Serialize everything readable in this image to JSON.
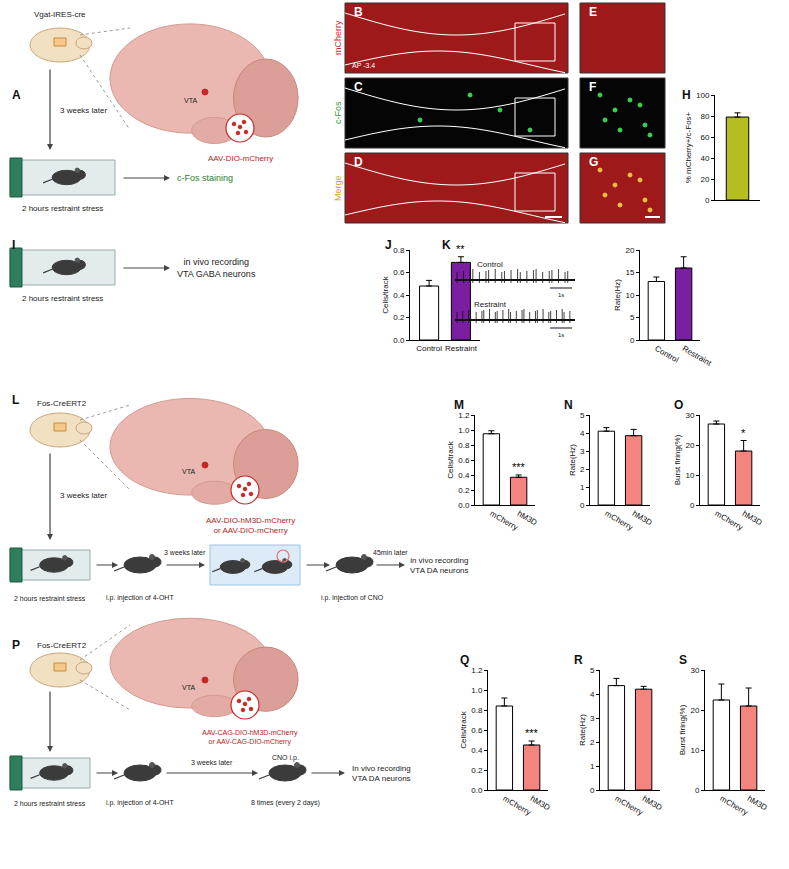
{
  "panel_labels": [
    "A",
    "B",
    "C",
    "D",
    "E",
    "F",
    "G",
    "H",
    "I",
    "J",
    "K",
    "L",
    "M",
    "N",
    "O",
    "P",
    "Q",
    "R",
    "S"
  ],
  "schematics": {
    "A": {
      "strain": "Vgat-IRES-cre",
      "region": "VTA",
      "virus": [
        "AAV-DIO-mCherry"
      ],
      "interval": "3 weeks later",
      "stress": "2 hours restraint stress",
      "readout": [
        "c-Fos staining"
      ]
    },
    "I": {
      "stress": "2 hours restraint stress",
      "readout": [
        "in vivo recording",
        "VTA GABA neurons"
      ]
    },
    "L": {
      "strain": "Fos-CreERT2",
      "region": "VTA",
      "virus": [
        "AAV-DIO-hM3D-mCherry",
        "or AAV-DIO-mCherry"
      ],
      "interval": "3 weeks later",
      "stress": "2 hours restraint stress",
      "step1": [
        "i.p. injection of 4-OHT"
      ],
      "interval2": "3 weeks later",
      "step2": [
        "i.p. injection of CNO"
      ],
      "interval3": "45min later",
      "readout": [
        "in vivo recording",
        "VTA DA neurons"
      ]
    },
    "P": {
      "strain": "Fos-CreERT2",
      "region": "VTA",
      "virus": [
        "AAV-CAG-DIO-hM3D-mCherry",
        "or AAV-CAG-DIO-mCherry"
      ],
      "stress": "2 hours restraint stress",
      "step1": [
        "i.p. injection of 4-OHT"
      ],
      "interval2": "3 weeks later",
      "step2_top": "CNO i.p.",
      "step2": [
        "8 times (every 2 days)"
      ],
      "readout": [
        "In vivo recording",
        "VTA DA neurons"
      ]
    }
  },
  "images": {
    "channels": [
      "mCherry",
      "c-Fos",
      "Merge"
    ],
    "section": "AP -3.4"
  },
  "traces": {
    "labels": [
      "Control",
      "Restraint"
    ],
    "time_scale": "1s"
  },
  "chart_data": [
    {
      "type": "bar",
      "categories": [
        null
      ],
      "values": [
        79
      ],
      "errors": [
        4
      ],
      "colors": [
        "#b5be1e"
      ],
      "y_label": "% mCherry+/c-Fos+",
      "ylim": [
        0,
        100
      ],
      "yticks": [
        0,
        20,
        40,
        60,
        80,
        100
      ]
    },
    {
      "type": "bar",
      "categories": [
        "Control",
        "Restraint"
      ],
      "values": [
        0.48,
        0.69
      ],
      "errors": [
        0.05,
        0.05
      ],
      "colors": [
        "#ffffff",
        "#7b1fa2"
      ],
      "y_label": "Cells/track",
      "ylim": [
        0,
        0.8
      ],
      "yticks": [
        {
          "value": 0,
          "label": "0.0"
        },
        0.2,
        0.4,
        0.6,
        0.8
      ],
      "annotations": [
        {
          "text": "**",
          "category": "Restraint"
        }
      ]
    },
    {
      "type": "bar",
      "categories": [
        "Control",
        "Restraint"
      ],
      "values": [
        13,
        16
      ],
      "errors": [
        1,
        2.5
      ],
      "colors": [
        "#ffffff",
        "#7b1fa2"
      ],
      "y_label": "Rate(Hz)",
      "ylim": [
        0,
        20
      ],
      "yticks": [
        0,
        5,
        10,
        15,
        20
      ]
    },
    {
      "type": "bar",
      "categories": [
        "mCherry",
        "hM3D"
      ],
      "values": [
        0.95,
        0.37
      ],
      "errors": [
        0.04,
        0.03
      ],
      "colors": [
        "#ffffff",
        "#f4847e"
      ],
      "y_label": "Cells/track",
      "ylim": [
        0,
        1.2
      ],
      "yticks": [
        {
          "value": 0,
          "label": "0.0"
        },
        0.2,
        0.4,
        0.6,
        0.8,
        {
          "value": 1,
          "label": "1.0"
        },
        1.2
      ],
      "annotations": [
        {
          "text": "***",
          "category": "hM3D"
        }
      ]
    },
    {
      "type": "bar",
      "categories": [
        "mCherry",
        "hM3D"
      ],
      "values": [
        4.1,
        3.85
      ],
      "errors": [
        0.2,
        0.35
      ],
      "colors": [
        "#ffffff",
        "#f4847e"
      ],
      "y_label": "Rate(Hz)",
      "ylim": [
        0,
        5
      ],
      "yticks": [
        0,
        1,
        2,
        3,
        4,
        5
      ]
    },
    {
      "type": "bar",
      "categories": [
        "mCherry",
        "hM3D"
      ],
      "values": [
        27,
        18
      ],
      "errors": [
        1,
        3.5
      ],
      "colors": [
        "#ffffff",
        "#f4847e"
      ],
      "y_label": "Burst firing(%)",
      "ylim": [
        0,
        30
      ],
      "yticks": [
        0,
        10,
        20,
        30
      ],
      "annotations": [
        {
          "text": "*",
          "category": "hM3D"
        }
      ]
    },
    {
      "type": "bar",
      "categories": [
        "mCherry",
        "hM3D"
      ],
      "values": [
        0.84,
        0.45
      ],
      "errors": [
        0.08,
        0.04
      ],
      "colors": [
        "#ffffff",
        "#f4847e"
      ],
      "y_label": "Cells/track",
      "ylim": [
        0,
        1.2
      ],
      "yticks": [
        {
          "value": 0,
          "label": "0.0"
        },
        0.2,
        0.4,
        0.6,
        0.8,
        {
          "value": 1,
          "label": "1.0"
        },
        1.2
      ],
      "annotations": [
        {
          "text": "***",
          "category": "hM3D"
        }
      ]
    },
    {
      "type": "bar",
      "categories": [
        "mCherry",
        "hM3D"
      ],
      "values": [
        4.35,
        4.2
      ],
      "errors": [
        0.3,
        0.12
      ],
      "colors": [
        "#ffffff",
        "#f4847e"
      ],
      "y_label": "Rate(Hz)",
      "ylim": [
        0,
        5
      ],
      "yticks": [
        0,
        1,
        2,
        3,
        4,
        5
      ]
    },
    {
      "type": "bar",
      "categories": [
        "mCherry",
        "hM3D"
      ],
      "values": [
        22.5,
        21
      ],
      "errors": [
        4,
        4.5
      ],
      "colors": [
        "#ffffff",
        "#f4847e"
      ],
      "y_label": "Burst firing(%)",
      "ylim": [
        0,
        30
      ],
      "yticks": [
        0,
        10,
        20,
        30
      ]
    }
  ]
}
